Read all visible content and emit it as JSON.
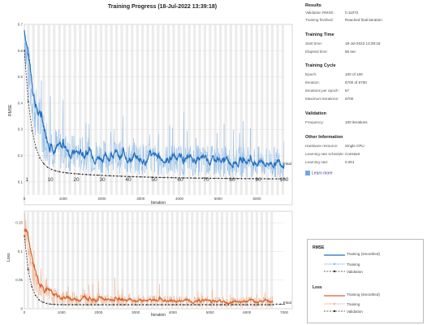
{
  "title": "Training Progress (18-Jul-2022 13:39:18)",
  "top_chart": {
    "ylabel": "RMSE",
    "xlabel": "Iteration",
    "epoch_labels": [
      "1",
      "10",
      "20",
      "30",
      "40",
      "50",
      "60",
      "70",
      "80",
      "90",
      "100"
    ],
    "iteration_ticks": [
      "0",
      "1000",
      "2000",
      "3000",
      "4000",
      "5000",
      "6000"
    ],
    "y_ticks": [
      "0.7",
      "0.6",
      "0.5",
      "0.4",
      "0.3",
      "0.2",
      "0.1"
    ],
    "final_label": "Final"
  },
  "bottom_chart": {
    "ylabel": "Loss",
    "xlabel": "Iteration",
    "iteration_ticks": [
      "0",
      "1000",
      "2000",
      "3000",
      "4000",
      "5000",
      "6000",
      "7000"
    ],
    "y_ticks": [
      "0.15",
      "0.1",
      "0.05",
      "0"
    ],
    "final_label": "Final"
  },
  "panel": {
    "results": {
      "title": "Results",
      "rows": [
        {
          "k": "Validation RMSE:",
          "v": "0.11072"
        },
        {
          "k": "Training finished:",
          "v": "Reached final iteration"
        }
      ]
    },
    "training_time": {
      "title": "Training Time",
      "rows": [
        {
          "k": "Start time:",
          "v": "18-Jul-2022 13:39:18"
        },
        {
          "k": "Elapsed time:",
          "v": "56 sec"
        }
      ]
    },
    "training_cycle": {
      "title": "Training Cycle",
      "rows": [
        {
          "k": "Epoch:",
          "v": "100 of 100"
        },
        {
          "k": "Iteration:",
          "v": "6700 of 6700"
        },
        {
          "k": "Iterations per epoch:",
          "v": "67"
        },
        {
          "k": "Maximum iterations:",
          "v": "6700"
        }
      ]
    },
    "validation": {
      "title": "Validation",
      "rows": [
        {
          "k": "Frequency:",
          "v": "100 iterations"
        }
      ]
    },
    "other": {
      "title": "Other Information",
      "rows": [
        {
          "k": "Hardware resource:",
          "v": "Single CPU"
        },
        {
          "k": "Learning rate schedule:",
          "v": "Constant"
        },
        {
          "k": "Learning rate:",
          "v": "0.001"
        }
      ]
    },
    "learn_more": "Learn more"
  },
  "legend": {
    "rmse_title": "RMSE",
    "loss_title": "Loss",
    "smoothed": "Training (smoothed)",
    "training": "Training",
    "validation": "Validation"
  },
  "colors": {
    "blue": "#1f6fbf",
    "blue_light": "#8fbbe6",
    "orange": "#d6622a",
    "orange_light": "#f2b28e",
    "validation": "#333333"
  }
}
